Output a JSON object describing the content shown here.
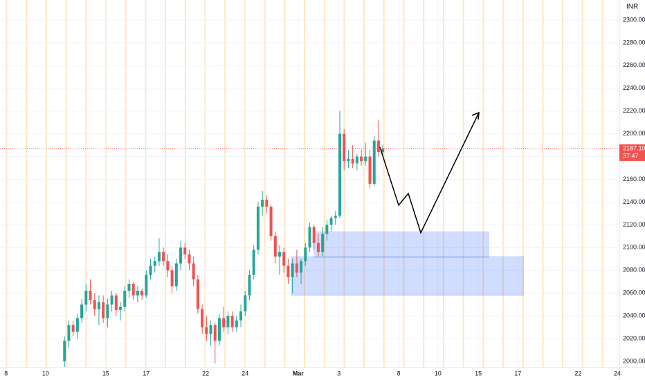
{
  "chart_data": {
    "type": "candlestick",
    "currency": "INR",
    "up_color": "#26a69a",
    "down_color": "#ef5350",
    "x": [
      15,
      16,
      17,
      18,
      19,
      20,
      21,
      22,
      23,
      24,
      25,
      26,
      27,
      28,
      29,
      30,
      31,
      32,
      33,
      34,
      35,
      36,
      37,
      38,
      39,
      40,
      41,
      42,
      43,
      44,
      45,
      46,
      47,
      48,
      49,
      50,
      51,
      52,
      53,
      54,
      55,
      56,
      57,
      58,
      59,
      60,
      61,
      62,
      63,
      64,
      65,
      66,
      67,
      68,
      69,
      70,
      71,
      72,
      73,
      74,
      75,
      76,
      77,
      78,
      79,
      80,
      81,
      82,
      83,
      84,
      85,
      86,
      87,
      88,
      89
    ],
    "open": [
      2000,
      2018,
      2032,
      2026,
      2038,
      2050,
      2062,
      2054,
      2046,
      2052,
      2038,
      2050,
      2058,
      2045,
      2048,
      2062,
      2068,
      2058,
      2062,
      2058,
      2076,
      2084,
      2088,
      2096,
      2088,
      2080,
      2066,
      2086,
      2100,
      2094,
      2086,
      2072,
      2046,
      2030,
      2024,
      2032,
      2018,
      2038,
      2030,
      2040,
      2030,
      2036,
      2044,
      2058,
      2076,
      2098,
      2136,
      2142,
      2136,
      2110,
      2092,
      2096,
      2084,
      2074,
      2086,
      2078,
      2088,
      2100,
      2118,
      2104,
      2096,
      2112,
      2120,
      2126,
      2128,
      2200,
      2176,
      2178,
      2174,
      2180,
      2176,
      2180,
      2156,
      2194,
      2184
    ],
    "high": [
      2022,
      2036,
      2036,
      2042,
      2055,
      2068,
      2072,
      2060,
      2058,
      2058,
      2055,
      2062,
      2060,
      2052,
      2066,
      2072,
      2070,
      2066,
      2064,
      2080,
      2090,
      2092,
      2108,
      2100,
      2094,
      2084,
      2090,
      2106,
      2104,
      2098,
      2092,
      2076,
      2050,
      2040,
      2036,
      2034,
      2042,
      2048,
      2044,
      2044,
      2040,
      2050,
      2062,
      2080,
      2102,
      2140,
      2150,
      2146,
      2138,
      2114,
      2102,
      2100,
      2090,
      2090,
      2098,
      2090,
      2104,
      2122,
      2120,
      2112,
      2118,
      2124,
      2128,
      2132,
      2220,
      2204,
      2186,
      2190,
      2182,
      2186,
      2192,
      2186,
      2198,
      2212,
      2190
    ],
    "low": [
      1995,
      2012,
      2022,
      2020,
      2034,
      2044,
      2050,
      2040,
      2032,
      2034,
      2030,
      2044,
      2040,
      2036,
      2044,
      2056,
      2054,
      2052,
      2054,
      2056,
      2072,
      2078,
      2084,
      2084,
      2074,
      2060,
      2062,
      2080,
      2090,
      2080,
      2066,
      2042,
      2024,
      2018,
      2014,
      1998,
      2014,
      2026,
      2024,
      2026,
      2026,
      2030,
      2040,
      2054,
      2072,
      2094,
      2128,
      2130,
      2106,
      2086,
      2076,
      2078,
      2068,
      2060,
      2074,
      2068,
      2084,
      2096,
      2098,
      2092,
      2092,
      2106,
      2114,
      2120,
      2126,
      2168,
      2170,
      2170,
      2168,
      2172,
      2172,
      2152,
      2154,
      2180,
      2182
    ],
    "close": [
      2018,
      2032,
      2026,
      2038,
      2050,
      2062,
      2054,
      2046,
      2052,
      2038,
      2050,
      2058,
      2045,
      2048,
      2062,
      2068,
      2058,
      2062,
      2058,
      2076,
      2084,
      2088,
      2096,
      2088,
      2080,
      2066,
      2086,
      2100,
      2094,
      2086,
      2072,
      2046,
      2030,
      2024,
      2032,
      2018,
      2038,
      2030,
      2040,
      2030,
      2036,
      2044,
      2058,
      2076,
      2098,
      2136,
      2142,
      2136,
      2110,
      2092,
      2096,
      2084,
      2074,
      2086,
      2078,
      2088,
      2100,
      2118,
      2104,
      2096,
      2112,
      2120,
      2126,
      2128,
      2200,
      2176,
      2178,
      2174,
      2180,
      2176,
      2180,
      2156,
      2194,
      2184,
      2187.1
    ],
    "xlim": [
      0,
      144
    ],
    "ylim": [
      1995,
      2315
    ],
    "xticks": [
      {
        "value": 1.4,
        "label": "8"
      },
      {
        "value": 10.6,
        "label": "10"
      },
      {
        "value": 24.6,
        "label": "15"
      },
      {
        "value": 34,
        "label": "17"
      },
      {
        "value": 47.8,
        "label": "22"
      },
      {
        "value": 57,
        "label": "24"
      },
      {
        "value": 69.3,
        "label": "Mar"
      },
      {
        "value": 78.8,
        "label": "3"
      },
      {
        "value": 92.7,
        "label": "8"
      },
      {
        "value": 101.8,
        "label": "10"
      },
      {
        "value": 111.2,
        "label": "15"
      },
      {
        "value": 120.4,
        "label": "17"
      },
      {
        "value": 134.4,
        "label": "22"
      },
      {
        "value": 143.5,
        "label": "24"
      }
    ],
    "yticks": [
      {
        "value": 2000,
        "label": "2000.00"
      },
      {
        "value": 2020,
        "label": "2020.00"
      },
      {
        "value": 2040,
        "label": "2040.00"
      },
      {
        "value": 2060,
        "label": "2060.00"
      },
      {
        "value": 2080,
        "label": "2080.00"
      },
      {
        "value": 2100,
        "label": "2100.00"
      },
      {
        "value": 2120,
        "label": "2120.00"
      },
      {
        "value": 2140,
        "label": "2140.00"
      },
      {
        "value": 2160,
        "label": "2160.00"
      },
      {
        "value": 2180,
        "label": "2180.00"
      },
      {
        "value": 2200,
        "label": "2200.00"
      },
      {
        "value": 2220,
        "label": "2220.00"
      },
      {
        "value": 2240,
        "label": "2240.00"
      },
      {
        "value": 2260,
        "label": "2260.00"
      },
      {
        "value": 2280,
        "label": "2280.00"
      },
      {
        "value": 2300,
        "label": "2300.00"
      }
    ],
    "last_price": {
      "value": 2187.1,
      "label": "2187.10"
    },
    "countdown": "37:47",
    "grid": true
  }
}
